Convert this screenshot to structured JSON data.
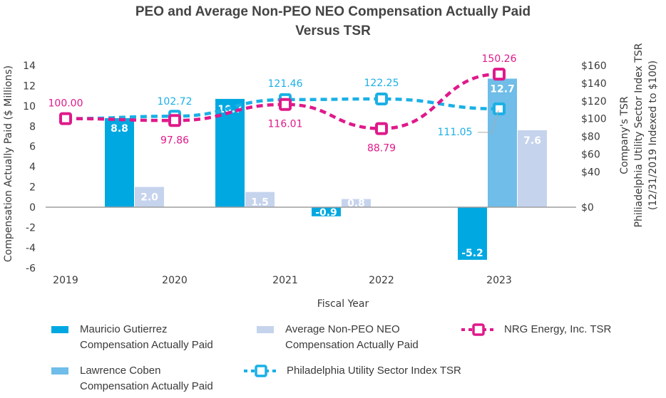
{
  "chart_data": {
    "type": "bar",
    "title": "PEO and Average Non-PEO NEO Compensation Actually Paid",
    "title_line2": "Versus TSR",
    "xlabel": "Fiscal Year",
    "ylabel": "Compensation Actually Paid ($ Millions)",
    "y2label_lines": [
      "Company's TSR",
      "Philiadelphia Utility Sector Index TSR",
      "(12/31/2019 Indexed to $100)"
    ],
    "categories": [
      "2019",
      "2020",
      "2021",
      "2022",
      "2023"
    ],
    "ylim": [
      -6,
      14
    ],
    "yticks": [
      "14",
      "12",
      "10",
      "8",
      "6",
      "4",
      "2",
      "0",
      "-2",
      "-4",
      "-6"
    ],
    "y2lim": [
      0,
      160
    ],
    "y2ticks": [
      "$160",
      "$140",
      "$120",
      "$100",
      "$80",
      "$60",
      "$40",
      "$0"
    ],
    "grid": false,
    "legend_position": "bottom",
    "bar_series": [
      {
        "name": "Mauricio Gutierrez Compensation Actually Paid",
        "name_lines": [
          "Mauricio Gutierrez",
          "Compensation Actually Paid"
        ],
        "color": "#00a8e1",
        "values": [
          null,
          8.8,
          10.7,
          -0.9,
          -5.2
        ],
        "labels": [
          "",
          "8.8",
          "10.7",
          "-0.9",
          "-5.2"
        ]
      },
      {
        "name": "Lawrence Coben Compensation Actually Paid",
        "name_lines": [
          "Lawrence Coben",
          "Compensation Actually Paid"
        ],
        "color": "#6fbde8",
        "values": [
          null,
          null,
          null,
          null,
          12.7
        ],
        "labels": [
          "",
          "",
          "",
          "",
          "12.7"
        ]
      },
      {
        "name": "Average Non-PEO NEO Compensation Actually Paid",
        "name_lines": [
          "Average Non-PEO NEO",
          "Compensation Actually Paid"
        ],
        "color": "#c5d3ed",
        "values": [
          null,
          2.0,
          1.5,
          0.8,
          7.6
        ],
        "labels": [
          "",
          "2.0",
          "1.5",
          "0.8",
          "7.6"
        ]
      }
    ],
    "line_series": [
      {
        "name": "NRG Energy, Inc. TSR",
        "color": "#e0198a",
        "axis": "right",
        "values": [
          100.0,
          97.86,
          116.01,
          88.79,
          150.26
        ],
        "labels": [
          "100.00",
          "97.86",
          "116.01",
          "88.79",
          "150.26"
        ]
      },
      {
        "name": "Philadelphia Utility Sector Index TSR",
        "color": "#1ab0e6",
        "axis": "right",
        "values": [
          100.0,
          102.72,
          121.46,
          122.25,
          111.05
        ],
        "labels": [
          "",
          "102.72",
          "121.46",
          "122.25",
          "111.05"
        ]
      }
    ]
  }
}
